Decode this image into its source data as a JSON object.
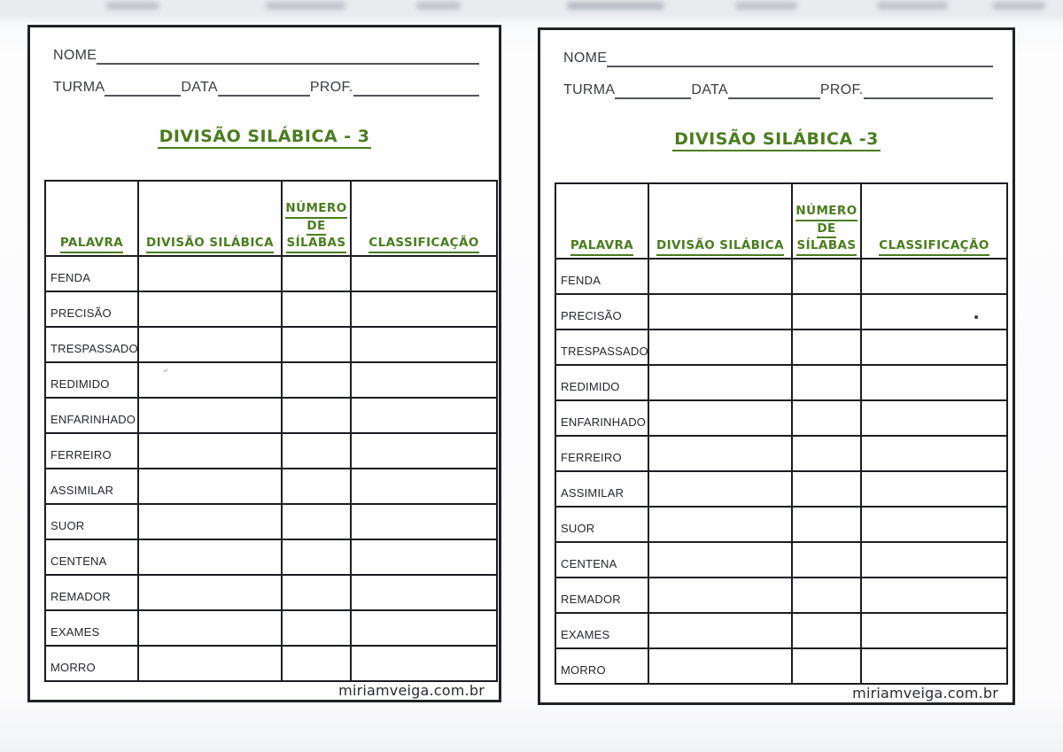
{
  "colors": {
    "accent_green": "#4a7d1e",
    "ink": "#26282c"
  },
  "sheets": [
    {
      "fields": {
        "name_label": "NOME",
        "class_label": "TURMA",
        "date_label": "DATA",
        "prof_label": "PROF."
      },
      "title": "DIVISÃO SILÁBICA - 3",
      "table": {
        "headers": [
          [
            "PALAVRA"
          ],
          [
            "DIVISÃO SILÁBICA"
          ],
          [
            "NÚMERO",
            "DE",
            "SÍLABAS"
          ],
          [
            "CLASSIFICAÇÃO"
          ]
        ],
        "words": [
          "FENDA",
          "PRECISÃO",
          "TRESPASSADO",
          "REDIMIDO",
          "ENFARINHADO",
          "FERREIRO",
          "ASSIMILAR",
          "SUOR",
          "CENTENA",
          "REMADOR",
          "EXAMES",
          "MORRO"
        ]
      },
      "footer": "miriamveiga.com.br"
    },
    {
      "fields": {
        "name_label": "NOME",
        "class_label": "TURMA",
        "date_label": "DATA",
        "prof_label": "PROF."
      },
      "title": "DIVISÃO SILÁBICA -3",
      "table": {
        "headers": [
          [
            "PALAVRA"
          ],
          [
            "DIVISÃO SILÁBICA"
          ],
          [
            "NÚMERO",
            "DE",
            "SÍLABAS"
          ],
          [
            "CLASSIFICAÇÃO"
          ]
        ],
        "words": [
          "FENDA",
          "PRECISÃO",
          "TRESPASSADO",
          "REDIMIDO",
          "ENFARINHADO",
          "FERREIRO",
          "ASSIMILAR",
          "SUOR",
          "CENTENA",
          "REMADOR",
          "EXAMES",
          "MORRO"
        ]
      },
      "footer": "miriamveiga.com.br"
    }
  ]
}
